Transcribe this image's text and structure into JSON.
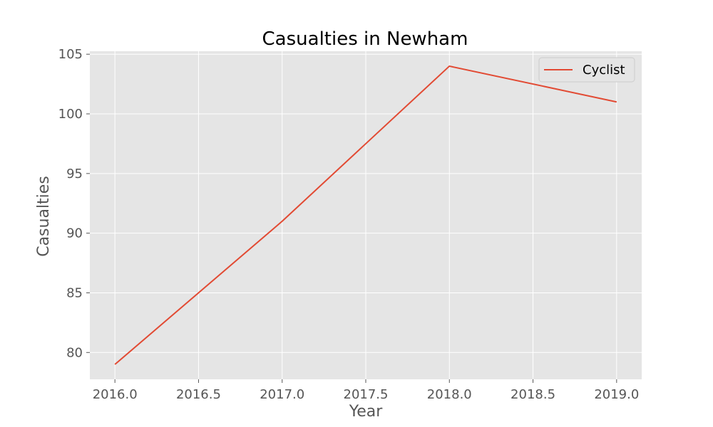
{
  "chart_data": {
    "type": "line",
    "title": "Casualties in Newham",
    "xlabel": "Year",
    "ylabel": "Casualties",
    "x": [
      2016,
      2017,
      2018,
      2019
    ],
    "series": [
      {
        "name": "Cyclist",
        "values": [
          79,
          91,
          104,
          101
        ],
        "color": "#e24a33"
      }
    ],
    "xlim": [
      2015.85,
      2019.15
    ],
    "ylim": [
      77.75,
      105.25
    ],
    "xticks": [
      2016.0,
      2016.5,
      2017.0,
      2017.5,
      2018.0,
      2018.5,
      2019.0
    ],
    "xtick_labels": [
      "2016.0",
      "2016.5",
      "2017.0",
      "2017.5",
      "2018.0",
      "2018.5",
      "2019.0"
    ],
    "yticks": [
      80,
      85,
      90,
      95,
      100,
      105
    ],
    "ytick_labels": [
      "80",
      "85",
      "90",
      "95",
      "100",
      "105"
    ],
    "grid": true,
    "legend_position": "top-right",
    "colors": {
      "plot_background": "#e5e5e5",
      "grid": "#ffffff",
      "tick_text": "#555555"
    }
  }
}
